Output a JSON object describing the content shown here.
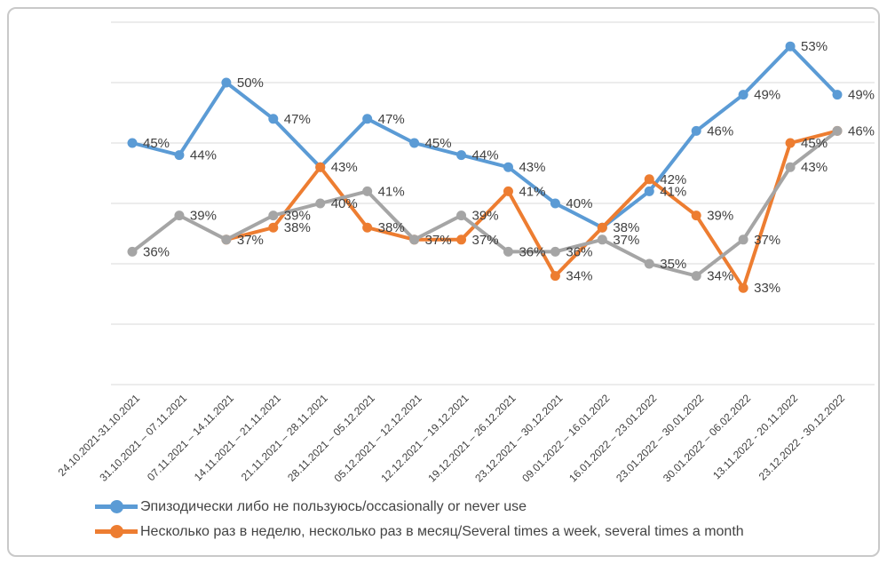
{
  "legend": {
    "items": [
      {
        "label": "Эпизодически либо не пользуюсь/occasionally or never use",
        "color": "#5B9BD5"
      },
      {
        "label": "Несколько раз в неделю, несколько раз в месяц/Several times a week, several times a month",
        "color": "#ED7D31"
      }
    ]
  },
  "colors": {
    "blue": "#5B9BD5",
    "orange": "#ED7D31",
    "gray": "#A5A5A5",
    "gridline": "#D9D9D9",
    "label_text": "#404040",
    "frame_border": "#C9C9C9"
  },
  "chart_data": {
    "type": "line",
    "categories": [
      "24.10.2021-31.10.2021",
      "31.10.2021 – 07.11.2021",
      "07.11.2021 – 14.11.2021",
      "14.11.2021 – 21.11.2021",
      "21.11.2021 – 28.11.2021",
      "28.11.2021 – 05.12.2021",
      "05.12.2021 – 12.12.2021",
      "12.12.2021 – 19.12.2021",
      "19.12.2021 – 26.12.2021",
      "23.12.2021 – 30.12.2021",
      "09.01.2022 – 16.01.2022",
      "16.01.2022 – 23.01.2022",
      "23.01.2022 – 30.01.2022",
      "30.01.2022 – 06.02.2022",
      "13.11.2022 - 20.11.2022",
      "23.12.2022 - 30.12.2022"
    ],
    "series": [
      {
        "name": "Эпизодически либо не пользуюсь/occasionally or never use",
        "color": "#5B9BD5",
        "values": [
          45,
          44,
          50,
          47,
          43,
          47,
          45,
          44,
          43,
          40,
          38,
          41,
          46,
          49,
          53,
          49
        ],
        "hidden_labels": []
      },
      {
        "name": "Несколько раз в неделю, несколько раз в месяц/Several times a week, several times a month",
        "color": "#ED7D31",
        "values": [
          null,
          null,
          37,
          38,
          43,
          38,
          37,
          37,
          41,
          34,
          38,
          42,
          39,
          33,
          45,
          46
        ],
        "hidden_labels": [
          2,
          4,
          6,
          10,
          15
        ]
      },
      {
        "name": "",
        "color": "#A5A5A5",
        "values": [
          36,
          39,
          37,
          39,
          40,
          41,
          37,
          39,
          36,
          36,
          37,
          35,
          34,
          37,
          43,
          46
        ],
        "hidden_labels": []
      }
    ],
    "data_label_suffix": "%",
    "y_axis": {
      "min": 25,
      "max": 55,
      "grid_step": 5,
      "tick_labels_visible": false
    },
    "gridlines_pct": [
      55,
      50,
      45,
      40,
      35,
      30,
      25
    ],
    "grid": true,
    "legend_position": "bottom-left"
  }
}
